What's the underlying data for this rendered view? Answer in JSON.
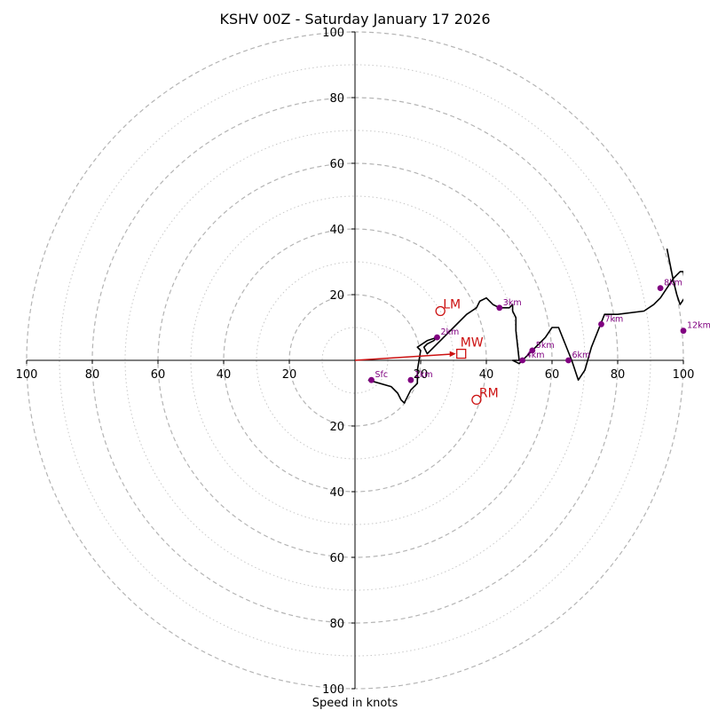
{
  "chart_data": {
    "type": "hodograph",
    "title": "KSHV 00Z - Saturday January 17 2026",
    "xlabel": "Speed in knots",
    "ylabel": "",
    "xlim": [
      -100,
      100
    ],
    "ylim": [
      -100,
      100
    ],
    "ring_major": [
      20,
      40,
      60,
      80,
      100
    ],
    "ring_minor": [
      10,
      30,
      50,
      70,
      90
    ],
    "x_tick_labels": [
      "100",
      "80",
      "60",
      "40",
      "20",
      "20",
      "40",
      "60",
      "80",
      "100"
    ],
    "y_tick_labels": [
      "100",
      "80",
      "60",
      "40",
      "20",
      "20",
      "40",
      "60",
      "80",
      "100"
    ],
    "trace_color": "#000000",
    "marker_color": "#800080",
    "storm_color": "#cc1111",
    "hodograph_trace": {
      "u": [
        4,
        11,
        13,
        14,
        15,
        16,
        17,
        19,
        19,
        20,
        19,
        22,
        25,
        24,
        22,
        21,
        22,
        26,
        30,
        34,
        37,
        38,
        40,
        42,
        44,
        47,
        48,
        48,
        49,
        49,
        50,
        48,
        50,
        52,
        54,
        56,
        58,
        60,
        62,
        64,
        66,
        68,
        70,
        72,
        74,
        76,
        80,
        88,
        91,
        93,
        95,
        97,
        99,
        100,
        101,
        99,
        98,
        97,
        96,
        95
      ],
      "v": [
        -6,
        -8,
        -10,
        -12,
        -13,
        -11,
        -9,
        -7,
        -3,
        3,
        4,
        6,
        7,
        6,
        5,
        4,
        2,
        6,
        10,
        14,
        16,
        18,
        19,
        17,
        16,
        16,
        17,
        15,
        13,
        9,
        0,
        0,
        -1,
        1,
        3,
        5,
        7,
        10,
        10,
        5,
        0,
        -6,
        -3,
        4,
        9,
        14,
        14,
        15,
        17,
        19,
        22,
        25,
        27,
        27,
        20,
        17,
        20,
        24,
        29,
        34
      ]
    },
    "height_markers": [
      {
        "label": "Sfc",
        "u": 5,
        "v": -6
      },
      {
        "label": "1km",
        "u": 17,
        "v": -6
      },
      {
        "label": "2km",
        "u": 25,
        "v": 7
      },
      {
        "label": "3km",
        "u": 44,
        "v": 16
      },
      {
        "label": "4km",
        "u": 51,
        "v": 0
      },
      {
        "label": "5km",
        "u": 54,
        "v": 3
      },
      {
        "label": "6km",
        "u": 65,
        "v": 0
      },
      {
        "label": "7km",
        "u": 75,
        "v": 11
      },
      {
        "label": "8km",
        "u": 93,
        "v": 22
      },
      {
        "label": "12km",
        "u": 100,
        "v": 9
      }
    ],
    "storm_motion": {
      "mean_wind": {
        "label": "MW",
        "u": 31,
        "v": 2
      },
      "left_mover": {
        "label": "LM",
        "u": 26,
        "v": 15
      },
      "right_mover": {
        "label": "RM",
        "u": 37,
        "v": -12
      }
    }
  }
}
